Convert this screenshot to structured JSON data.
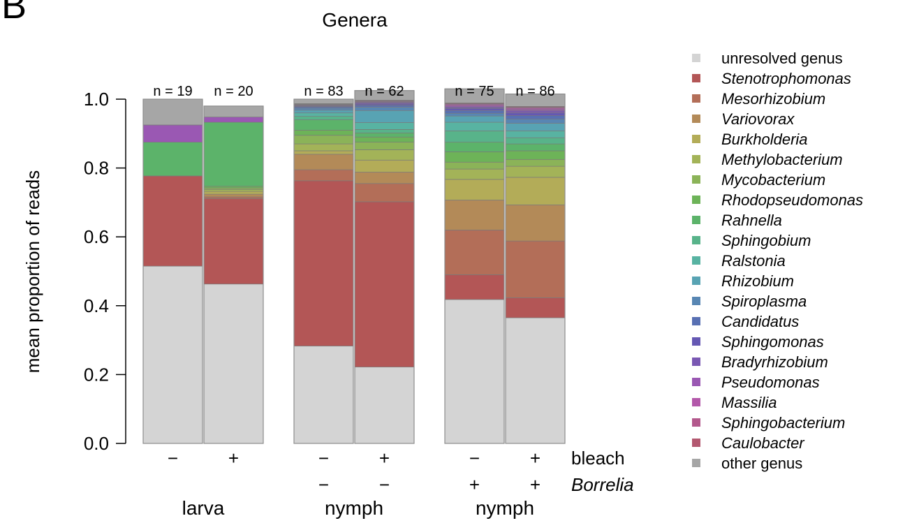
{
  "panel_label": "B",
  "chart_data": {
    "type": "bar",
    "stacked": true,
    "title": "Genera",
    "ylabel": "mean proportion of reads",
    "ylim": [
      0,
      1.0
    ],
    "yticks": [
      "0.0",
      "0.2",
      "0.4",
      "0.6",
      "0.8",
      "1.0"
    ],
    "factor_labels": {
      "bleach": "bleach",
      "borrelia": "Borrelia"
    },
    "groups": [
      {
        "label": "larva",
        "bars": [
          0,
          1
        ]
      },
      {
        "label": "nymph",
        "bars": [
          2,
          3
        ]
      },
      {
        "label": "nymph",
        "bars": [
          4,
          5
        ]
      }
    ],
    "bars": [
      {
        "n_label": "n = 19",
        "bleach": "−",
        "borrelia": ""
      },
      {
        "n_label": "n = 20",
        "bleach": "+",
        "borrelia": ""
      },
      {
        "n_label": "n = 83",
        "bleach": "−",
        "borrelia": "−"
      },
      {
        "n_label": "n = 62",
        "bleach": "+",
        "borrelia": "−"
      },
      {
        "n_label": "n = 75",
        "bleach": "−",
        "borrelia": "+"
      },
      {
        "n_label": "n = 86",
        "bleach": "+",
        "borrelia": "+"
      }
    ],
    "series": [
      {
        "name": "unresolved genus",
        "italic": false,
        "color": "#d4d4d4",
        "values": [
          0.515,
          0.463,
          0.283,
          0.222,
          0.418,
          0.365
        ]
      },
      {
        "name": "Stenotrophomonas",
        "italic": true,
        "color": "#b35656",
        "values": [
          0.262,
          0.248,
          0.48,
          0.48,
          0.072,
          0.058
        ]
      },
      {
        "name": "Mesorhizobium",
        "italic": true,
        "color": "#b36e58",
        "values": [
          0.0,
          0.005,
          0.032,
          0.053,
          0.13,
          0.165
        ]
      },
      {
        "name": "Variovorax",
        "italic": true,
        "color": "#b38a58",
        "values": [
          0.0,
          0.008,
          0.045,
          0.033,
          0.087,
          0.105
        ]
      },
      {
        "name": "Burkholderia",
        "italic": true,
        "color": "#b3ac58",
        "values": [
          0.0,
          0.008,
          0.01,
          0.035,
          0.06,
          0.08
        ]
      },
      {
        "name": "Methylobacterium",
        "italic": true,
        "color": "#a3b358",
        "values": [
          0.0,
          0.005,
          0.02,
          0.03,
          0.03,
          0.032
        ]
      },
      {
        "name": "Mycobacterium",
        "italic": true,
        "color": "#8bb358",
        "values": [
          0.0,
          0.005,
          0.025,
          0.022,
          0.02,
          0.02
        ]
      },
      {
        "name": "Rhodopseudomonas",
        "italic": true,
        "color": "#6db358",
        "values": [
          0.0,
          0.005,
          0.015,
          0.015,
          0.03,
          0.025
        ]
      },
      {
        "name": "Rahnella",
        "italic": true,
        "color": "#5cb36a",
        "values": [
          0.098,
          0.186,
          0.03,
          0.012,
          0.028,
          0.02
        ]
      },
      {
        "name": "Sphingobium",
        "italic": true,
        "color": "#58b38a",
        "values": [
          0.0,
          0.0,
          0.01,
          0.01,
          0.033,
          0.018
        ]
      },
      {
        "name": "Ralstonia",
        "italic": true,
        "color": "#58b3a2",
        "values": [
          0.0,
          0.0,
          0.01,
          0.02,
          0.025,
          0.02
        ]
      },
      {
        "name": "Rhizobium",
        "italic": true,
        "color": "#58a3b3",
        "values": [
          0.0,
          0.0,
          0.008,
          0.035,
          0.018,
          0.022
        ]
      },
      {
        "name": "Spiroplasma",
        "italic": true,
        "color": "#5886b3",
        "values": [
          0.0,
          0.0,
          0.006,
          0.01,
          0.008,
          0.012
        ]
      },
      {
        "name": "Candidatus",
        "italic": true,
        "color": "#5870b3",
        "values": [
          0.0,
          0.0,
          0.004,
          0.005,
          0.008,
          0.01
        ]
      },
      {
        "name": "Sphingomonas",
        "italic": true,
        "color": "#6558b3",
        "values": [
          0.0,
          0.0,
          0.002,
          0.004,
          0.006,
          0.008
        ]
      },
      {
        "name": "Bradyrhizobium",
        "italic": true,
        "color": "#7a58b3",
        "values": [
          0.0,
          0.0,
          0.002,
          0.004,
          0.004,
          0.006
        ]
      },
      {
        "name": "Pseudomonas",
        "italic": true,
        "color": "#9a58b3",
        "values": [
          0.05,
          0.015,
          0.002,
          0.002,
          0.004,
          0.004
        ]
      },
      {
        "name": "Massilia",
        "italic": true,
        "color": "#b358aa",
        "values": [
          0.0,
          0.0,
          0.001,
          0.002,
          0.004,
          0.004
        ]
      },
      {
        "name": "Sphingobacterium",
        "italic": true,
        "color": "#b3588c",
        "values": [
          0.0,
          0.0,
          0.001,
          0.002,
          0.002,
          0.003
        ]
      },
      {
        "name": "Caulobacter",
        "italic": true,
        "color": "#b35870",
        "values": [
          0.0,
          0.0,
          0.001,
          0.001,
          0.002,
          0.002
        ]
      },
      {
        "name": "other genus",
        "italic": false,
        "color": "#a6a6a6",
        "values": [
          0.075,
          0.032,
          0.013,
          0.028,
          0.041,
          0.036
        ]
      }
    ]
  }
}
